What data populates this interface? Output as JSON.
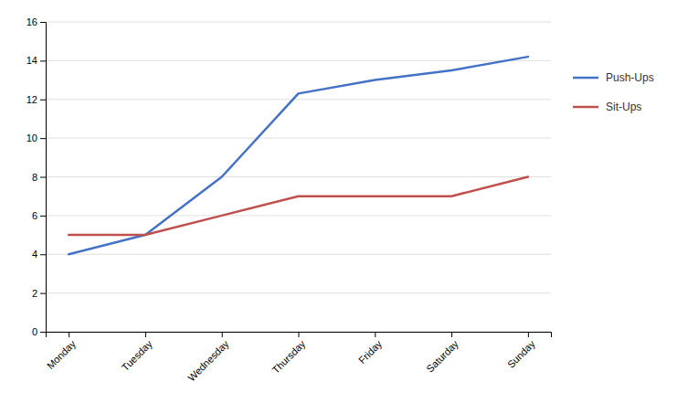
{
  "chart_data": {
    "type": "line",
    "categories": [
      "Monday",
      "Tuesday",
      "Wednesday",
      "Thursday",
      "Friday",
      "Saturday",
      "Sunday"
    ],
    "series": [
      {
        "name": "Push-Ups",
        "color": "#4472C4",
        "values": [
          4,
          5,
          8,
          12.3,
          13,
          13.5,
          14.2
        ]
      },
      {
        "name": "Sit-Ups",
        "color": "#C0504D",
        "values": [
          5,
          5,
          6,
          7,
          7,
          7,
          8
        ]
      }
    ],
    "ylim": [
      0,
      16
    ],
    "yticks": [
      0,
      2,
      4,
      6,
      8,
      10,
      12,
      14,
      16
    ],
    "grid": true,
    "legend": "right"
  }
}
